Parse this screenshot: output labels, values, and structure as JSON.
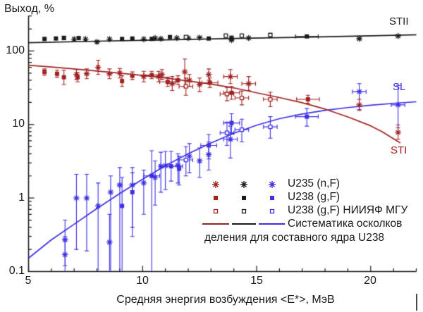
{
  "colors": {
    "red": "#a12121",
    "black": "#1a1a1a",
    "blue": "#3d2fe6"
  },
  "axes": {
    "y_tick_labels": [
      "100",
      "10",
      "1",
      "0.1"
    ],
    "x_tick_labels": [
      "5",
      "10",
      "15",
      "20"
    ]
  },
  "curve_labels": {
    "stii": "STII",
    "sl": "SL",
    "sti": "STI"
  },
  "legend": {
    "rows": [
      {
        "label": "U235 (n,F)",
        "marker": "asterisk"
      },
      {
        "label": "U238 (g,F)",
        "marker": "square"
      },
      {
        "label": "U238 (g,F) НИИЯФ МГУ",
        "marker": "open-square"
      },
      {
        "label": "Систематика осколков",
        "marker": "line"
      }
    ],
    "note": "деления для составного ядра U238"
  },
  "chart_data": {
    "type": "scatter",
    "title": "",
    "xlabel": "Средняя энергия возбуждения <E*>, МэВ",
    "ylabel": "Выход, %",
    "xlim": [
      5,
      22
    ],
    "ylim": [
      0.1,
      301
    ],
    "yscale": "log",
    "grid": false,
    "x_ticks_labeled": [
      5,
      10,
      15,
      20
    ],
    "y_ticks_labeled": [
      0.1,
      1,
      10,
      100
    ],
    "point_format": "[x_MeV, y_percent, yerr_low, yerr_high, xerr_halfwidth]",
    "series": [
      {
        "label": "U235 (n,F)",
        "group": "SL",
        "color": "blue",
        "marker": "asterisk",
        "points": [
          [
            6.6,
            0.27,
            0.12,
            0.5
          ],
          [
            6.6,
            0.17,
            0.1,
            0.3
          ],
          [
            7.1,
            1.0,
            0.2,
            2.1
          ],
          [
            7.55,
            1.0,
            0.19,
            2.1
          ],
          [
            8.05,
            0.78,
            0.1,
            1.6
          ],
          [
            8.55,
            0.25,
            0.1,
            0.6
          ],
          [
            8.6,
            1.2,
            0.1,
            2.0
          ],
          [
            9.0,
            1.5,
            0.1,
            2.6
          ],
          [
            9.55,
            1.5,
            0.4,
            2.6
          ],
          [
            10.05,
            1.6,
            0.6,
            2.4
          ],
          [
            10.55,
            1.9,
            0.8,
            3.2
          ],
          [
            10.8,
            2.7,
            1.2,
            4.2
          ],
          [
            11.0,
            2.75,
            1.3,
            4.3
          ],
          [
            11.55,
            2.8,
            1.6,
            4.0
          ],
          [
            12.05,
            3.7,
            2.2,
            5.5
          ],
          [
            12.5,
            3.2,
            1.9,
            4.8
          ],
          [
            12.9,
            3.9,
            2.4,
            5.8
          ],
          [
            13.85,
            6.3,
            3.5,
            9.5,
            0.3
          ],
          [
            19.5,
            28,
            16,
            36,
            0.3
          ],
          [
            21.2,
            18.5,
            9,
            34,
            0.3
          ]
        ]
      },
      {
        "label": "U238 (g,F)",
        "group": "SL",
        "color": "blue",
        "marker": "square",
        "points": [
          [
            9.1,
            0.78,
            0.1,
            1.9
          ],
          [
            9.55,
            1.2,
            0.3,
            2.2
          ],
          [
            10.4,
            2.0,
            0.1,
            4.4,
            0.35
          ],
          [
            11.25,
            2.7,
            1.7,
            4.3,
            0.5
          ],
          [
            11.6,
            2.5,
            1.5,
            3.7
          ],
          [
            12.9,
            5.2,
            3.4,
            7.3,
            0.35
          ],
          [
            13.9,
            10.5,
            7.5,
            14,
            0.35
          ],
          [
            17.2,
            12.8,
            9.5,
            16.5,
            0.5
          ]
        ]
      },
      {
        "label": "U238 (g,F) НИИЯФ МГУ",
        "group": "SL",
        "color": "blue",
        "marker": "open-square",
        "points": [
          [
            11.9,
            3.3,
            2.0,
            5.0,
            0.3
          ],
          [
            13.7,
            7.7,
            5.2,
            10.8,
            0.3
          ],
          [
            14.35,
            8.5,
            5.8,
            11.8,
            0.3
          ],
          [
            15.6,
            9.3,
            6.5,
            12.8,
            0.3
          ]
        ]
      },
      {
        "label": "U235 (n,F)",
        "group": "STI",
        "color": "red",
        "marker": "asterisk",
        "points": [
          [
            7.1,
            48,
            41,
            56
          ],
          [
            7.55,
            49,
            42,
            57
          ],
          [
            8.05,
            60,
            48,
            75
          ],
          [
            8.55,
            49,
            42,
            57
          ],
          [
            9.0,
            50,
            43,
            58
          ],
          [
            10.05,
            45,
            38,
            53
          ],
          [
            10.7,
            45,
            38,
            53
          ],
          [
            10.85,
            48,
            41,
            56
          ],
          [
            11.3,
            36,
            29,
            45
          ],
          [
            11.85,
            52,
            33,
            78
          ],
          [
            12.05,
            40,
            33,
            48
          ],
          [
            12.5,
            35,
            28,
            43
          ],
          [
            12.9,
            48,
            40,
            57
          ],
          [
            13.85,
            45,
            36,
            56,
            0.3
          ],
          [
            14.65,
            36,
            29,
            45,
            0.3
          ],
          [
            19.5,
            18.5,
            15.5,
            22
          ],
          [
            21.2,
            7.8,
            6.3,
            9.9
          ]
        ]
      },
      {
        "label": "U238 (g,F)",
        "group": "STI",
        "color": "red",
        "marker": "square",
        "points": [
          [
            5.7,
            52,
            47,
            57
          ],
          [
            6.25,
            49,
            44,
            55
          ],
          [
            6.55,
            44,
            35,
            55
          ],
          [
            7.15,
            44,
            38,
            51
          ],
          [
            9.1,
            39,
            33,
            46
          ],
          [
            9.55,
            46,
            41,
            52
          ],
          [
            10.4,
            47,
            42,
            53,
            0.35
          ],
          [
            11.1,
            38,
            33,
            44,
            0.35
          ],
          [
            11.55,
            40,
            35,
            46
          ],
          [
            12.95,
            37,
            32,
            43,
            0.35
          ],
          [
            13.9,
            27,
            22,
            33,
            0.35
          ],
          [
            17.25,
            22,
            19.5,
            25,
            0.5
          ]
        ]
      },
      {
        "label": "U238 (g,F) НИИЯФ МГУ",
        "group": "STI",
        "color": "red",
        "marker": "open-square",
        "points": [
          [
            11.9,
            33,
            25,
            43,
            0.3
          ],
          [
            13.7,
            26,
            21,
            32,
            0.3
          ],
          [
            14.35,
            23,
            18.5,
            28.5,
            0.3
          ],
          [
            15.6,
            22,
            17.5,
            27.5,
            0.3
          ]
        ]
      },
      {
        "label": "U235 (n,F)",
        "group": "STII",
        "color": "black",
        "marker": "asterisk",
        "points": [
          [
            7.0,
            145
          ],
          [
            7.5,
            145
          ],
          [
            8.0,
            133
          ],
          [
            8.55,
            145
          ],
          [
            10.05,
            145
          ],
          [
            10.55,
            150
          ],
          [
            10.8,
            147
          ],
          [
            11.5,
            150
          ],
          [
            12.0,
            150
          ],
          [
            12.5,
            152
          ],
          [
            13.9,
            141
          ],
          [
            14.65,
            150
          ],
          [
            19.5,
            147
          ],
          [
            21.2,
            160
          ]
        ]
      },
      {
        "label": "U238 (g,F)",
        "group": "STII",
        "color": "black",
        "marker": "square",
        "points": [
          [
            5.7,
            146
          ],
          [
            6.2,
            148
          ],
          [
            6.55,
            150,
            142,
            159
          ],
          [
            7.2,
            150
          ],
          [
            9.1,
            146
          ],
          [
            9.55,
            148
          ],
          [
            10.4,
            146
          ],
          [
            11.2,
            155
          ],
          [
            12.9,
            148
          ],
          [
            13.9,
            149,
            138,
            160
          ],
          [
            17.2,
            158,
            null,
            null,
            0.5
          ]
        ]
      },
      {
        "label": "U238 (g,F) НИИЯФ МГУ",
        "group": "STII",
        "color": "black",
        "marker": "open-square",
        "points": [
          [
            11.9,
            155
          ],
          [
            13.65,
            162
          ],
          [
            14.35,
            162
          ],
          [
            15.6,
            165
          ]
        ]
      }
    ],
    "curves": [
      {
        "label": "SL",
        "color": "blue",
        "points": [
          [
            5,
            0.152
          ],
          [
            6,
            0.27
          ],
          [
            7,
            0.44
          ],
          [
            8,
            0.72
          ],
          [
            9,
            1.15
          ],
          [
            10,
            1.8
          ],
          [
            11,
            2.75
          ],
          [
            12,
            4.0
          ],
          [
            13,
            5.6
          ],
          [
            14,
            7.6
          ],
          [
            15,
            9.8
          ],
          [
            16,
            12.0
          ],
          [
            17,
            13.9
          ],
          [
            18,
            15.6
          ],
          [
            19,
            17.0
          ],
          [
            20,
            18.3
          ],
          [
            21,
            19.4
          ],
          [
            22,
            20.4
          ]
        ]
      },
      {
        "label": "STI",
        "color": "red",
        "points": [
          [
            5,
            64
          ],
          [
            6,
            60.5
          ],
          [
            7,
            57
          ],
          [
            8,
            53.5
          ],
          [
            9,
            50
          ],
          [
            10,
            46.5
          ],
          [
            11,
            43
          ],
          [
            12,
            39
          ],
          [
            13,
            35.5
          ],
          [
            14,
            31.5
          ],
          [
            15,
            27
          ],
          [
            16,
            23.3
          ],
          [
            17,
            19.8
          ],
          [
            18,
            16.2
          ],
          [
            19,
            12.7
          ],
          [
            20,
            9.6
          ],
          [
            20.5,
            8.0
          ],
          [
            21,
            6.4
          ],
          [
            21.3,
            5.6
          ]
        ]
      },
      {
        "label": "STII",
        "color": "black",
        "points": [
          [
            5,
            130
          ],
          [
            8,
            136
          ],
          [
            11,
            142
          ],
          [
            14,
            148
          ],
          [
            17,
            154
          ],
          [
            20,
            161
          ],
          [
            22,
            166
          ]
        ]
      }
    ]
  }
}
